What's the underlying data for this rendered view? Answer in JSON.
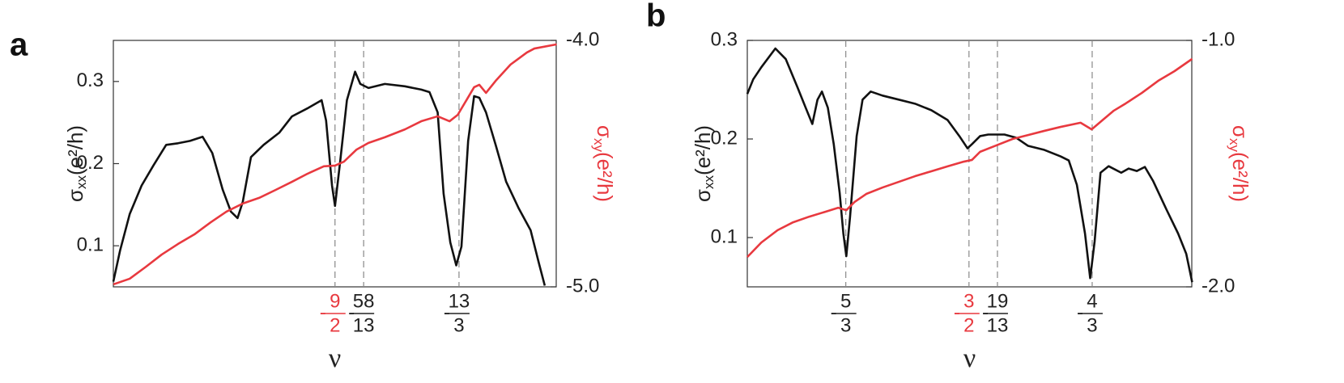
{
  "chart_data": [
    {
      "type": "line",
      "panel": "a",
      "xlabel": "ν",
      "ylabel": {
        "base": "σ",
        "sub": "xx",
        "unit": "(e²/h)"
      },
      "y2label": {
        "base": "σ",
        "sub": "xy",
        "unit": "(e²/h)"
      },
      "xlim": [
        -4.798,
        -4.2026
      ],
      "ylim": [
        0.05,
        0.35
      ],
      "y2lim": [
        -5,
        -4
      ],
      "yticks": [
        0.1,
        0.2,
        0.3
      ],
      "y2ticks": [
        {
          "value": -4,
          "label": "-4.0"
        },
        {
          "value": -5,
          "label": "-5.0"
        }
      ],
      "xticks": [
        {
          "value": -4.5,
          "sign": "-",
          "numerator": "9",
          "denominator": "2",
          "color": "#e8393f"
        },
        {
          "value": -4.4615,
          "sign": "-",
          "numerator": "58",
          "denominator": "13",
          "color": "#222222"
        },
        {
          "value": -4.3333,
          "sign": "-",
          "numerator": "13",
          "denominator": "3",
          "color": "#222222"
        }
      ],
      "series": [
        {
          "name": "σxx",
          "color": "#111111",
          "axis": "y",
          "x": [
            -4.798,
            -4.789,
            -4.776,
            -4.76,
            -4.744,
            -4.727,
            -4.711,
            -4.695,
            -4.678,
            -4.665,
            -4.651,
            -4.64,
            -4.631,
            -4.624,
            -4.613,
            -4.596,
            -4.575,
            -4.558,
            -4.537,
            -4.518,
            -4.512,
            -4.504,
            -4.5,
            -4.493,
            -4.484,
            -4.473,
            -4.466,
            -4.455,
            -4.433,
            -4.406,
            -4.384,
            -4.373,
            -4.362,
            -4.354,
            -4.345,
            -4.337,
            -4.33,
            -4.321,
            -4.313,
            -4.306,
            -4.297,
            -4.284,
            -4.27,
            -4.253,
            -4.237,
            -4.226,
            -4.218
          ],
          "values": [
            0.0564,
            0.0941,
            0.1386,
            0.1733,
            0.198,
            0.2228,
            0.2248,
            0.2277,
            0.2327,
            0.2129,
            0.1683,
            0.1416,
            0.1337,
            0.1535,
            0.2079,
            0.2228,
            0.2376,
            0.2574,
            0.2673,
            0.2772,
            0.2525,
            0.1733,
            0.1485,
            0.203,
            0.2772,
            0.3119,
            0.297,
            0.2921,
            0.297,
            0.2941,
            0.2901,
            0.2871,
            0.2624,
            0.1634,
            0.104,
            0.0762,
            0.099,
            0.2277,
            0.2822,
            0.2802,
            0.2624,
            0.2228,
            0.1782,
            0.1455,
            0.1188,
            0.0792,
            0.0515
          ]
        },
        {
          "name": "σxy",
          "color": "#e8393f",
          "axis": "y2",
          "x": [
            -4.798,
            -4.776,
            -4.754,
            -4.733,
            -4.711,
            -4.689,
            -4.667,
            -4.646,
            -4.624,
            -4.602,
            -4.58,
            -4.558,
            -4.537,
            -4.515,
            -4.5,
            -4.488,
            -4.471,
            -4.455,
            -4.433,
            -4.406,
            -4.384,
            -4.362,
            -4.346,
            -4.335,
            -4.324,
            -4.313,
            -4.306,
            -4.297,
            -4.284,
            -4.264,
            -4.242,
            -4.232,
            -4.202
          ],
          "values": [
            -4.99,
            -4.967,
            -4.918,
            -4.869,
            -4.826,
            -4.787,
            -4.738,
            -4.695,
            -4.662,
            -4.639,
            -4.607,
            -4.574,
            -4.541,
            -4.511,
            -4.508,
            -4.492,
            -4.443,
            -4.416,
            -4.393,
            -4.361,
            -4.328,
            -4.308,
            -4.328,
            -4.302,
            -4.246,
            -4.19,
            -4.18,
            -4.213,
            -4.164,
            -4.098,
            -4.049,
            -4.033,
            -4.016
          ]
        }
      ]
    },
    {
      "type": "line",
      "panel": "b",
      "xlabel": "ν",
      "ylabel": {
        "base": "σ",
        "sub": "xx",
        "unit": "(e²/h)"
      },
      "y2label": {
        "base": "σ",
        "sub": "xy",
        "unit": "(e²/h)"
      },
      "xlim": [
        -1.8,
        -1.1985
      ],
      "ylim": [
        0.05,
        0.3
      ],
      "y2lim": [
        -2,
        -1
      ],
      "yticks": [
        0.1,
        0.2,
        0.3
      ],
      "y2ticks": [
        {
          "value": -1,
          "label": "-1.0"
        },
        {
          "value": -2,
          "label": "-2.0"
        }
      ],
      "xticks": [
        {
          "value": -1.6667,
          "sign": "-",
          "numerator": "5",
          "denominator": "3",
          "color": "#222222"
        },
        {
          "value": -1.5,
          "sign": "-",
          "numerator": "3",
          "denominator": "2",
          "color": "#e8393f"
        },
        {
          "value": -1.4615,
          "sign": "-",
          "numerator": "19",
          "denominator": "13",
          "color": "#222222"
        },
        {
          "value": -1.3333,
          "sign": "-",
          "numerator": "4",
          "denominator": "3",
          "color": "#222222"
        }
      ],
      "series": [
        {
          "name": "σxx",
          "color": "#111111",
          "axis": "y",
          "x": [
            -1.8,
            -1.792,
            -1.781,
            -1.762,
            -1.748,
            -1.732,
            -1.721,
            -1.712,
            -1.705,
            -1.699,
            -1.691,
            -1.683,
            -1.675,
            -1.67,
            -1.666,
            -1.661,
            -1.652,
            -1.644,
            -1.633,
            -1.617,
            -1.595,
            -1.573,
            -1.551,
            -1.529,
            -1.513,
            -1.502,
            -1.496,
            -1.485,
            -1.474,
            -1.452,
            -1.436,
            -1.42,
            -1.398,
            -1.376,
            -1.365,
            -1.354,
            -1.343,
            -1.336,
            -1.33,
            -1.322,
            -1.311,
            -1.294,
            -1.284,
            -1.273,
            -1.262,
            -1.251,
            -1.233,
            -1.217,
            -1.206,
            -1.198
          ],
          "values": [
            0.2457,
            0.2605,
            0.2728,
            0.2918,
            0.2811,
            0.2523,
            0.2317,
            0.2152,
            0.2399,
            0.2481,
            0.2317,
            0.1947,
            0.1453,
            0.1041,
            0.0811,
            0.1206,
            0.2029,
            0.2399,
            0.2481,
            0.244,
            0.2399,
            0.2358,
            0.2292,
            0.2193,
            0.2029,
            0.1905,
            0.1947,
            0.2029,
            0.2045,
            0.2045,
            0.2012,
            0.193,
            0.1889,
            0.1823,
            0.1782,
            0.1535,
            0.1041,
            0.0588,
            0.0959,
            0.1658,
            0.1724,
            0.1658,
            0.17,
            0.1675,
            0.1716,
            0.1576,
            0.1288,
            0.1041,
            0.0835,
            0.0547
          ]
        },
        {
          "name": "σxy",
          "color": "#e8393f",
          "axis": "y2",
          "x": [
            -1.8,
            -1.781,
            -1.759,
            -1.738,
            -1.716,
            -1.694,
            -1.677,
            -1.666,
            -1.655,
            -1.639,
            -1.617,
            -1.595,
            -1.573,
            -1.551,
            -1.529,
            -1.507,
            -1.496,
            -1.485,
            -1.463,
            -1.441,
            -1.42,
            -1.398,
            -1.376,
            -1.349,
            -1.334,
            -1.321,
            -1.304,
            -1.288,
            -1.266,
            -1.244,
            -1.222,
            -1.198
          ],
          "values": [
            -1.879,
            -1.82,
            -1.77,
            -1.738,
            -1.715,
            -1.695,
            -1.679,
            -1.689,
            -1.656,
            -1.623,
            -1.597,
            -1.574,
            -1.551,
            -1.531,
            -1.511,
            -1.492,
            -1.485,
            -1.452,
            -1.426,
            -1.4,
            -1.384,
            -1.367,
            -1.351,
            -1.334,
            -1.361,
            -1.328,
            -1.285,
            -1.256,
            -1.213,
            -1.164,
            -1.125,
            -1.075
          ]
        }
      ]
    }
  ]
}
